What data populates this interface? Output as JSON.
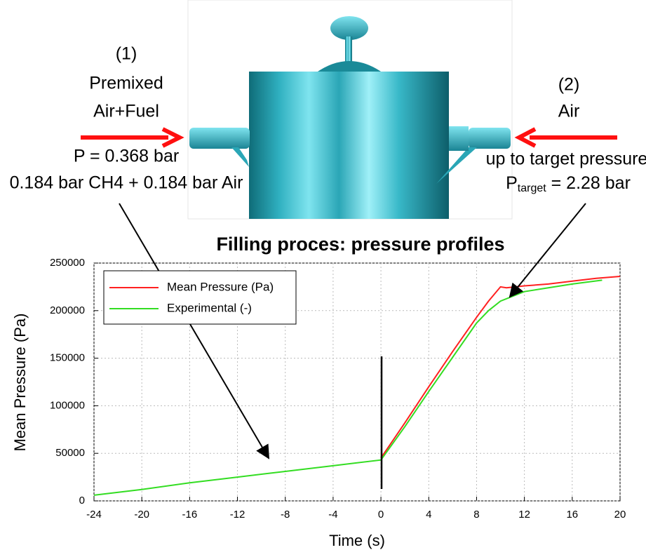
{
  "chart_data": {
    "type": "line",
    "title": "Filling proces: pressure profiles",
    "x_label": "Time (s)",
    "y_label": "Mean Pressure (Pa)",
    "xlim": [
      -24,
      20
    ],
    "xticks": [
      -24,
      -20,
      -16,
      -12,
      -8,
      -4,
      0,
      4,
      8,
      12,
      16,
      20
    ],
    "ylim": [
      0,
      250000
    ],
    "yticks": [
      0,
      50000,
      100000,
      150000,
      200000,
      250000
    ],
    "grid": true,
    "legend": "upper left",
    "series": [
      {
        "name": "Mean Pressure (Pa)",
        "color": "#ff2020",
        "x": [
          0,
          2,
          4,
          6,
          8,
          9,
          10,
          10.5,
          12,
          14,
          16,
          18,
          20
        ],
        "values": [
          45000,
          82000,
          120000,
          157000,
          193000,
          210000,
          225000,
          224000,
          226000,
          228000,
          231000,
          234000,
          236000
        ]
      },
      {
        "name": "Experimental (-)",
        "color": "#33dd22",
        "x": [
          -24,
          -20,
          -16,
          -12,
          -8,
          -4,
          0,
          2,
          4,
          6,
          8,
          9,
          10,
          12,
          14,
          16,
          18.5
        ],
        "values": [
          6000,
          12000,
          19000,
          25000,
          31000,
          37000,
          43000,
          78000,
          115000,
          151000,
          187000,
          200000,
          210000,
          220000,
          224000,
          228000,
          232000
        ]
      }
    ],
    "annotations": {
      "left": [
        "(1)",
        "Premixed",
        "Air+Fuel",
        "P = 0.368 bar",
        "0.184 bar CH4 + 0.184 bar Air"
      ],
      "right": [
        "(2)",
        "Air",
        "up to target pressure"
      ],
      "p_target": {
        "symbol": "P",
        "subscript": "target",
        "value": " = 2.28 bar"
      }
    }
  }
}
